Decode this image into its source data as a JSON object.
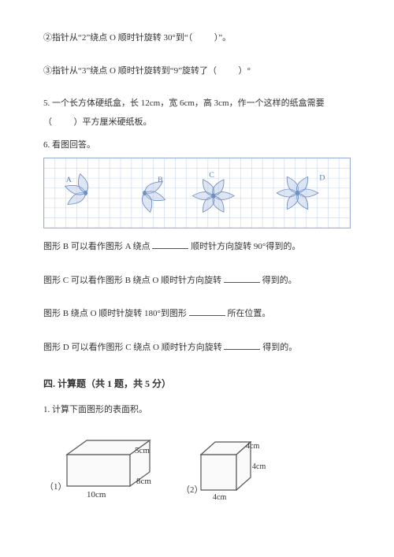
{
  "q2": {
    "text_a": "②指针从“2”绕点 O 顺时针旋转 30°到“（",
    "text_b": "）”。"
  },
  "q3": {
    "text_a": "③指针从“3”绕点 O 顺时针旋转到“9”旋转了（",
    "text_b": "）°"
  },
  "q5": {
    "line1": "5. 一个长方体硬纸盒，长 12cm，宽 6cm，高 3cm，作一个这样的纸盒需要",
    "line2_a": "（",
    "line2_b": "）平方厘米硬纸板。"
  },
  "q6": {
    "title": "6. 看图回答。",
    "grid": {
      "cols": 28,
      "rows": 7,
      "cell": 14,
      "grid_color": "#c7d6ed",
      "border_color": "#9bb3d6",
      "flower_color": "#b6c8e4",
      "flower_stroke": "#6f8fc4",
      "labels": [
        "A",
        "B",
        "C",
        "D"
      ],
      "label_color": "#5a7ab0"
    },
    "s1_a": "图形 B 可以看作图形 A 绕点",
    "s1_b": "顺时针方向旋转 90°得到的。",
    "s2_a": "图形 C 可以看作图形 B 绕点 O 顺时针方向旋转",
    "s2_b": "得到的。",
    "s3_a": "图形 B 绕点 O 顺时针旋转 180°到图形",
    "s3_b": "所在位置。",
    "s4_a": "图形 D 可以看作图形 C 绕点 O 顺时针方向旋转",
    "s4_b": "得到的。"
  },
  "section4": {
    "heading": "四. 计算题（共 1 题，共 5 分）",
    "q1": "1. 计算下面图形的表面积。"
  },
  "figs": {
    "n1": "（1）",
    "n2": "（2）",
    "cuboid": {
      "l": "10cm",
      "w": "8cm",
      "h": "5cm"
    },
    "cube": {
      "a": "4cm",
      "b": "4cm",
      "c": "4cm"
    },
    "line_color": "#555555",
    "fill_color": "#fafafa",
    "text_color": "#333333"
  }
}
